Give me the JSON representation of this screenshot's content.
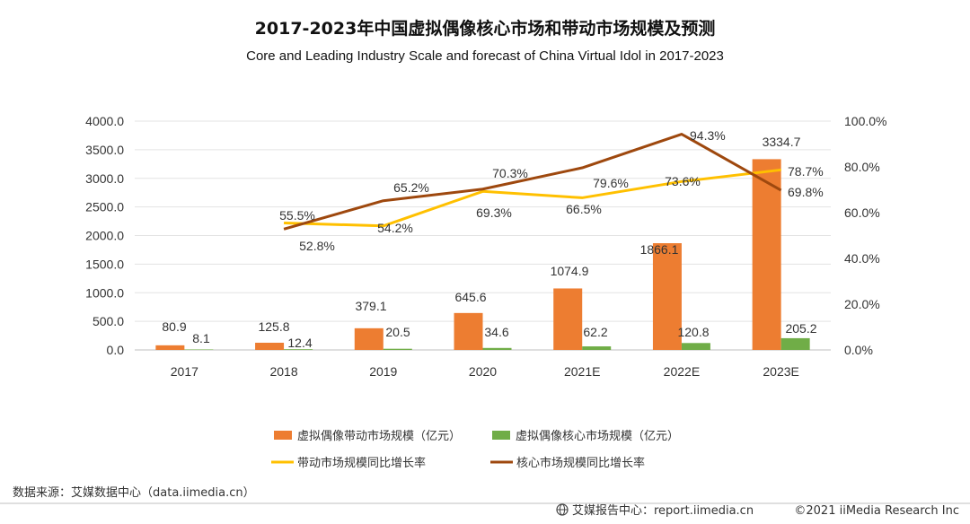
{
  "chart_data": {
    "type": "bar",
    "title": "2017-2023年中国虚拟偶像核心市场和带动市场规模及预测",
    "subtitle": "Core and Leading Industry Scale and forecast of China Virtual Idol in 2017-2023",
    "categories": [
      "2017",
      "2018",
      "2019",
      "2020",
      "2021E",
      "2022E",
      "2023E"
    ],
    "ylim": [
      0,
      4000
    ],
    "yticks": [
      "0.0",
      "500.0",
      "1000.0",
      "1500.0",
      "2000.0",
      "2500.0",
      "3000.0",
      "3500.0",
      "4000.0"
    ],
    "y2lim": [
      0,
      100
    ],
    "y2ticks": [
      "0.0%",
      "20.0%",
      "40.0%",
      "60.0%",
      "80.0%",
      "100.0%"
    ],
    "grid": true,
    "series": [
      {
        "name": "虚拟偶像带动市场规模（亿元）",
        "kind": "bar",
        "color": "#ED7D31",
        "values": [
          80.9,
          125.8,
          379.1,
          645.6,
          1074.9,
          1866.1,
          3334.7
        ],
        "labels": [
          "80.9",
          "125.8",
          "379.1",
          "645.6",
          "1074.9",
          "1866.1",
          "3334.7"
        ]
      },
      {
        "name": "虚拟偶像核心市场规模（亿元）",
        "kind": "bar",
        "color": "#70AD47",
        "values": [
          8.1,
          12.4,
          20.5,
          34.6,
          62.2,
          120.8,
          205.2
        ],
        "labels": [
          "8.1",
          "12.4",
          "20.5",
          "34.6",
          "62.2",
          "120.8",
          "205.2"
        ]
      },
      {
        "name": "带动市场规模同比增长率",
        "kind": "line",
        "axis": "right",
        "color": "#FFC000",
        "values": [
          null,
          55.5,
          54.2,
          69.3,
          66.5,
          73.6,
          78.7
        ],
        "labels": [
          null,
          "55.5%",
          "54.2%",
          "69.3%",
          "66.5%",
          "73.6%",
          "78.7%"
        ]
      },
      {
        "name": "核心市场规模同比增长率",
        "kind": "line",
        "axis": "right",
        "color": "#9E480E",
        "values": [
          null,
          52.8,
          65.2,
          70.3,
          79.6,
          94.3,
          69.8
        ],
        "labels": [
          null,
          "52.8%",
          "65.2%",
          "70.3%",
          "79.6%",
          "94.3%",
          "69.8%"
        ]
      }
    ]
  },
  "source": "数据来源：艾媒数据中心（data.iimedia.cn）",
  "footer": {
    "report": "艾媒报告中心：report.iimedia.cn",
    "copyright": "©2021  iiMedia Research  Inc"
  }
}
